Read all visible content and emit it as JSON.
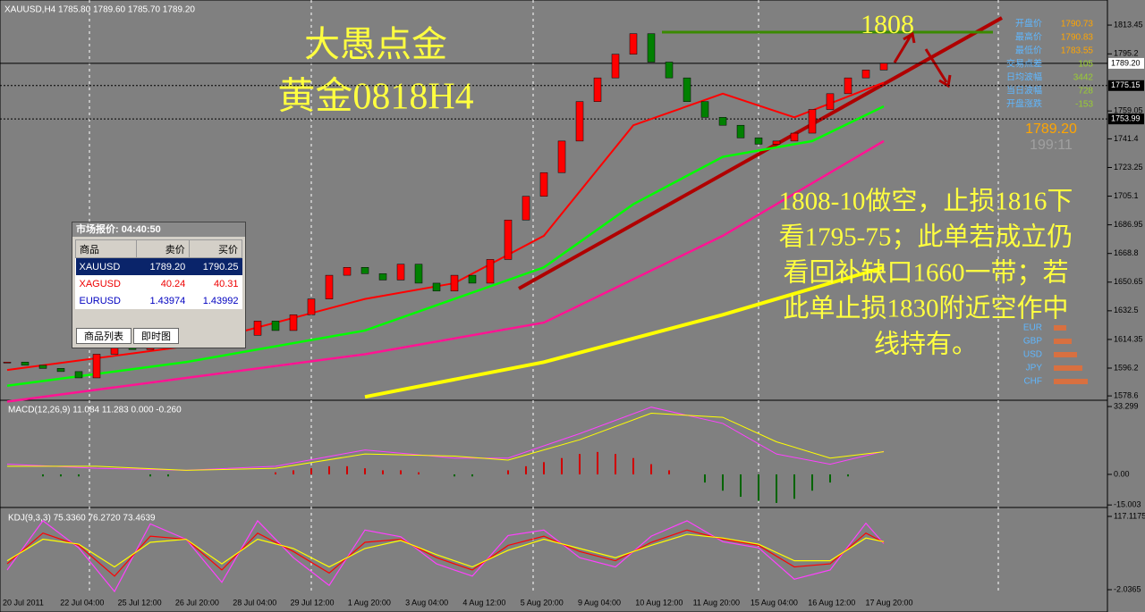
{
  "header": {
    "symbol_info": "XAUUSD,H4  1785.80 1789.60 1785.70 1789.20"
  },
  "overlay": {
    "title_line1": "大愚点金",
    "title_line2": "黄金0818H4",
    "target": "1808",
    "analysis_lines": [
      "1808-10做空，止损1816下",
      "看1795-75；此单若成立仍",
      "看回补缺口1660一带；若",
      "此单止损1830附近空作中",
      "线持有。"
    ]
  },
  "info_panel": {
    "rows": [
      [
        "开盘价",
        "1790.73"
      ],
      [
        "最高价",
        "1790.83"
      ],
      [
        "最低价",
        "1783.55"
      ],
      [
        "交易点差",
        "105"
      ],
      [
        "日均波幅",
        "3442"
      ],
      [
        "当日波幅",
        "728"
      ],
      [
        "开盘涨跌",
        "-153"
      ]
    ],
    "bid": "1789.20",
    "timer": "199:11",
    "currencies": [
      "EUR",
      "GBP",
      "USD",
      "JPY",
      "CHF"
    ]
  },
  "market_watch": {
    "title": "市场报价: 04:40:50",
    "columns": [
      "商品",
      "卖价",
      "买价"
    ],
    "rows": [
      [
        "XAUUSD",
        "1789.20",
        "1790.25"
      ],
      [
        "XAGUSD",
        "40.24",
        "40.31"
      ],
      [
        "EURUSD",
        "1.43974",
        "1.43992"
      ]
    ],
    "tabs": [
      "商品列表",
      "即时图"
    ]
  },
  "price": {
    "ylim": [
      1576.4,
      1826.5
    ],
    "yticks": [
      1813.45,
      1795.2,
      1759.05,
      1741.4,
      1723.25,
      1705.1,
      1686.95,
      1668.8,
      1650.65,
      1632.5,
      1614.35,
      1596.2,
      1578.6
    ],
    "price_boxes": [
      {
        "value": 1789.2,
        "label": "1789.20"
      },
      {
        "value": 1775.15,
        "label": "1775.15"
      },
      {
        "value": 1753.99,
        "label": "1753.99"
      }
    ],
    "closes": [
      1600,
      1598,
      1596,
      1594,
      1590,
      1605,
      1612,
      1608,
      1615,
      1618,
      1614,
      1620,
      1622,
      1617,
      1626,
      1620,
      1630,
      1640,
      1655,
      1660,
      1656,
      1652,
      1662,
      1650,
      1645,
      1655,
      1650,
      1665,
      1690,
      1705,
      1720,
      1740,
      1765,
      1780,
      1795,
      1808,
      1790,
      1780,
      1765,
      1755,
      1750,
      1742,
      1738,
      1740,
      1745,
      1760,
      1770,
      1780,
      1785,
      1789.2
    ],
    "mas": [
      {
        "color": "#ffff00",
        "width": 4,
        "x": [
          20,
          30,
          40,
          49
        ],
        "values": [
          1578,
          1600,
          1630,
          1660
        ]
      },
      {
        "color": "#ff1493",
        "width": 2.5,
        "x": [
          0,
          10,
          20,
          30,
          40,
          49
        ],
        "values": [
          1575,
          1590,
          1605,
          1625,
          1680,
          1740
        ]
      },
      {
        "color": "#00ff00",
        "width": 2.5,
        "x": [
          0,
          10,
          20,
          25,
          30,
          35,
          40,
          45,
          49
        ],
        "values": [
          1585,
          1600,
          1620,
          1640,
          1660,
          1700,
          1730,
          1740,
          1762
        ]
      },
      {
        "color": "#ff0000",
        "width": 2,
        "x": [
          0,
          10,
          20,
          25,
          30,
          35,
          40,
          44,
          49
        ],
        "values": [
          1595,
          1610,
          1640,
          1650,
          1680,
          1750,
          1770,
          1755,
          1777
        ]
      }
    ]
  },
  "macd": {
    "label": "MACD(12,26,9) 11.084 11.283 0.000 -0.260",
    "ylim": [
      -15.8,
      35.5
    ],
    "yticks": [
      {
        "value": 33.299,
        "label": "33.299"
      },
      {
        "value": 0,
        "label": "0.00"
      },
      {
        "value": -15.003,
        "label": "-15.003"
      }
    ],
    "hist": [
      0,
      0,
      -1,
      -1,
      -1,
      0,
      0,
      0,
      -1,
      -1,
      0,
      0,
      0,
      0,
      0,
      1,
      2,
      3,
      4,
      4,
      3,
      2,
      2,
      1,
      0,
      -1,
      -1,
      0,
      2,
      4,
      6,
      8,
      10,
      11,
      10,
      8,
      5,
      2,
      0,
      -4,
      -8,
      -11,
      -13,
      -14,
      -12,
      -8,
      -4,
      -1,
      0,
      0
    ],
    "lines": [
      {
        "color": "#ff40ff",
        "x": [
          0,
          5,
          10,
          15,
          20,
          25,
          28,
          32,
          36,
          40,
          43,
          46,
          49
        ],
        "values": [
          5,
          3,
          2,
          4,
          12,
          8,
          8,
          20,
          33,
          25,
          10,
          5,
          11.3
        ]
      },
      {
        "color": "#ffff00",
        "x": [
          0,
          5,
          10,
          15,
          20,
          25,
          28,
          32,
          36,
          40,
          43,
          46,
          49
        ],
        "values": [
          4,
          4,
          2,
          3,
          10,
          9,
          7,
          17,
          30,
          28,
          16,
          8,
          11.1
        ]
      }
    ]
  },
  "kdj": {
    "label": "KDJ(9,3,3) 75.3360 76.2720 73.4639",
    "ylim": [
      -35.4,
      127.3
    ],
    "yticks": [
      {
        "value": 117.1175,
        "label": "117.1175"
      },
      {
        "value": -2.0365,
        "label": "-2.0365"
      }
    ],
    "x": [
      0,
      2,
      4,
      6,
      8,
      10,
      12,
      14,
      16,
      18,
      20,
      22,
      24,
      26,
      28,
      30,
      32,
      34,
      36,
      38,
      40,
      42,
      44,
      46,
      48,
      49
    ],
    "lines": [
      {
        "color": "#ff40ff",
        "values": [
          30,
          110,
          66,
          -5,
          105,
          80,
          10,
          110,
          50,
          5,
          95,
          84,
          40,
          20,
          86,
          95,
          50,
          35,
          85,
          110,
          76,
          66,
          15,
          30,
          106,
          73
        ]
      },
      {
        "color": "#ff0000",
        "values": [
          40,
          90,
          70,
          20,
          85,
          80,
          30,
          90,
          60,
          25,
          75,
          80,
          50,
          30,
          70,
          85,
          60,
          45,
          75,
          95,
          80,
          70,
          35,
          40,
          90,
          75
        ]
      },
      {
        "color": "#ffff00",
        "values": [
          45,
          80,
          72,
          35,
          75,
          80,
          40,
          80,
          65,
          35,
          65,
          78,
          55,
          35,
          62,
          80,
          65,
          50,
          70,
          88,
          82,
          72,
          45,
          45,
          82,
          76
        ]
      }
    ]
  },
  "x_labels": [
    "20 Jul 2011",
    "22 Jul 04:00",
    "25 Jul 12:00",
    "26 Jul 20:00",
    "28 Jul 04:00",
    "29 Jul 12:00",
    "1 Aug 20:00",
    "3 Aug 04:00",
    "4 Aug 12:00",
    "5 Aug 20:00",
    "9 Aug 04:00",
    "10 Aug 12:00",
    "11 Aug 20:00",
    "15 Aug 04:00",
    "16 Aug 12:00",
    "17 Aug 20:00"
  ]
}
